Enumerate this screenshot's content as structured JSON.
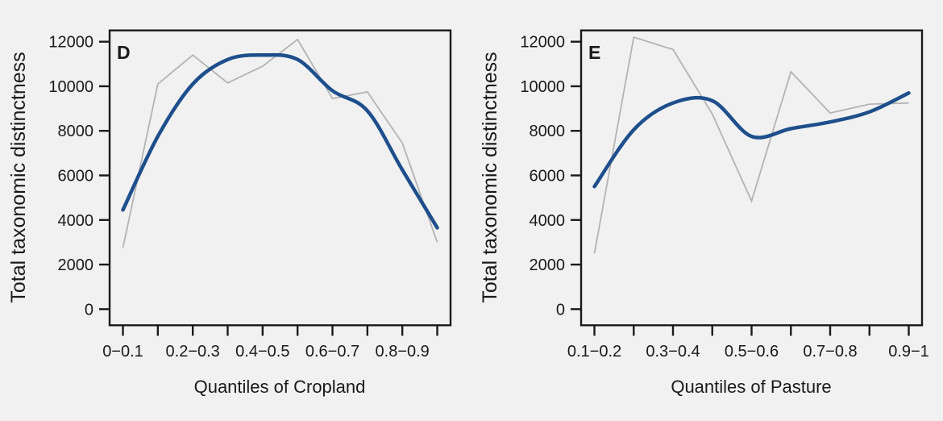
{
  "figure": {
    "background": "#f1f1f1",
    "axis_color": "#1a1a1a",
    "text_color": "#1a1a1a"
  },
  "chart_data": [
    {
      "type": "line",
      "panel_label": "D",
      "xlabel": "Quantiles of Cropland",
      "ylabel": "Total taxonomic distinctness",
      "categories": [
        "0−0.1",
        "",
        "0.2−0.3",
        "",
        "0.4−0.5",
        "",
        "0.6−0.7",
        "",
        "0.8−0.9",
        ""
      ],
      "y_ticks": [
        0,
        2000,
        4000,
        6000,
        8000,
        10000,
        12000
      ],
      "ylim": [
        0,
        12000
      ],
      "grid": "off",
      "legend": "none",
      "series": [
        {
          "name": "raw-gray-line",
          "color": "#b3b3b3",
          "stroke_width": 1.8,
          "smooth": false,
          "values": [
            2750,
            10100,
            11400,
            10150,
            10900,
            12100,
            9450,
            9750,
            7450,
            3000
          ]
        },
        {
          "name": "smoothed-blue-line",
          "color": "#1e4f8c",
          "stroke_width": 4.5,
          "smooth": true,
          "values": [
            4450,
            7750,
            10100,
            11200,
            11400,
            11200,
            9800,
            8900,
            6250,
            3650
          ]
        }
      ]
    },
    {
      "type": "line",
      "panel_label": "E",
      "xlabel": "Quantiles of Pasture",
      "ylabel": "Total taxonomic distinctness",
      "categories": [
        "0.1−0.2",
        "",
        "0.3−0.4",
        "",
        "0.5−0.6",
        "",
        "0.7−0.8",
        "",
        "0.9−1"
      ],
      "y_ticks": [
        0,
        2000,
        4000,
        6000,
        8000,
        10000,
        12000
      ],
      "ylim": [
        0,
        12000
      ],
      "grid": "off",
      "legend": "none",
      "series": [
        {
          "name": "raw-gray-line",
          "color": "#b3b3b3",
          "stroke_width": 1.8,
          "smooth": false,
          "values": [
            2500,
            12200,
            11650,
            8750,
            4850,
            10650,
            8800,
            9200,
            9250
          ]
        },
        {
          "name": "smoothed-blue-line",
          "color": "#1e4f8c",
          "stroke_width": 4.5,
          "smooth": true,
          "values": [
            5500,
            8050,
            9250,
            9350,
            7750,
            8100,
            8400,
            8850,
            9700
          ]
        }
      ]
    }
  ]
}
